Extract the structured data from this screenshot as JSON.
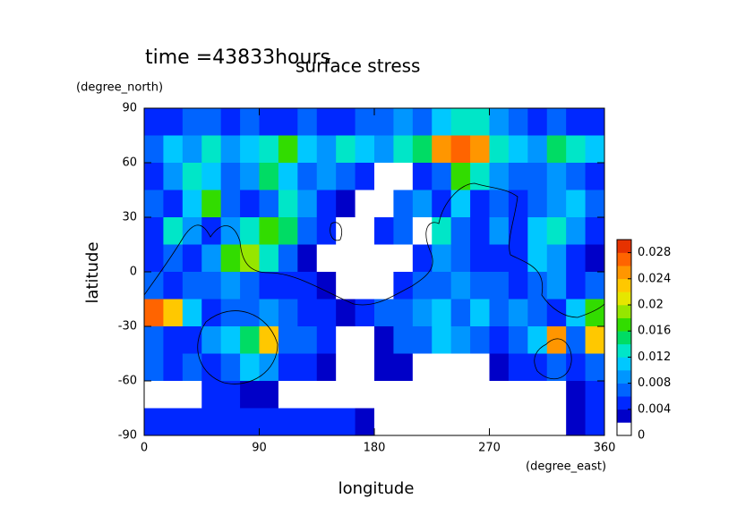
{
  "chart_data": {
    "type": "contour",
    "title": "time =43833hours",
    "subtitle": "surface stress",
    "xlabel": "longitude",
    "ylabel": "latitude",
    "xunit": "(degree_east)",
    "yunit": "(degree_north)",
    "xlim": [
      0,
      360
    ],
    "ylim": [
      -90,
      90
    ],
    "xticks": [
      0,
      90,
      180,
      270,
      360
    ],
    "yticks": [
      -90,
      -60,
      -30,
      0,
      30,
      60,
      90
    ],
    "z": [
      [
        0.004,
        0.004,
        0.006,
        0.006,
        0.004,
        0.006,
        0.004,
        0.004,
        0.006,
        0.004,
        0.004,
        0.006,
        0.006,
        0.008,
        0.006,
        0.01,
        0.012,
        0.012,
        0.008,
        0.006,
        0.004,
        0.006,
        0.004,
        0.004
      ],
      [
        0.006,
        0.01,
        0.008,
        0.012,
        0.008,
        0.01,
        0.012,
        0.016,
        0.01,
        0.008,
        0.012,
        0.01,
        0.008,
        0.012,
        0.014,
        0.024,
        0.026,
        0.024,
        0.012,
        0.01,
        0.008,
        0.014,
        0.012,
        0.01
      ],
      [
        0.004,
        0.008,
        0.012,
        0.01,
        0.006,
        0.008,
        0.014,
        0.01,
        0.006,
        0.008,
        0.006,
        0.004,
        0,
        0,
        0.004,
        0.006,
        0.016,
        0.012,
        0.008,
        0.006,
        0.006,
        0.008,
        0.006,
        0.004
      ],
      [
        0.006,
        0.004,
        0.01,
        0.016,
        0.006,
        0.004,
        0.006,
        0.012,
        0.008,
        0.004,
        0.002,
        0,
        0,
        0.006,
        0.008,
        0.004,
        0.01,
        0.004,
        0.006,
        0.004,
        0.006,
        0.008,
        0.01,
        0.006
      ],
      [
        0.004,
        0.012,
        0.008,
        0.004,
        0.008,
        0.012,
        0.016,
        0.014,
        0.006,
        0.004,
        0,
        0,
        0.004,
        0.006,
        0,
        0.012,
        0.006,
        0.004,
        0.008,
        0.004,
        0.01,
        0.012,
        0.008,
        0.004
      ],
      [
        0.004,
        0.006,
        0.004,
        0.008,
        0.016,
        0.018,
        0.012,
        0.006,
        0.002,
        0,
        0,
        0,
        0,
        0,
        0.004,
        0.008,
        0.006,
        0.004,
        0.004,
        0.004,
        0.01,
        0.008,
        0.004,
        0.002
      ],
      [
        0.006,
        0.004,
        0.006,
        0.006,
        0.008,
        0.006,
        0.004,
        0.004,
        0.004,
        0.002,
        0,
        0,
        0,
        0.004,
        0.006,
        0.006,
        0.008,
        0.006,
        0.006,
        0.004,
        0.006,
        0.008,
        0.004,
        0.006
      ],
      [
        0.026,
        0.022,
        0.01,
        0.004,
        0.006,
        0.006,
        0.008,
        0.006,
        0.004,
        0.004,
        0.002,
        0.004,
        0.006,
        0.006,
        0.008,
        0.01,
        0.006,
        0.01,
        0.006,
        0.008,
        0.006,
        0.004,
        0.01,
        0.016
      ],
      [
        0.006,
        0.004,
        0.004,
        0.008,
        0.01,
        0.014,
        0.022,
        0.006,
        0.006,
        0.004,
        0,
        0,
        0.002,
        0.006,
        0.006,
        0.01,
        0.008,
        0.006,
        0.004,
        0.006,
        0.01,
        0.024,
        0.006,
        0.022
      ],
      [
        0.006,
        0.004,
        0.006,
        0.004,
        0.006,
        0.01,
        0.008,
        0.004,
        0.004,
        0.002,
        0,
        0,
        0.002,
        0.002,
        0,
        0,
        0,
        0,
        0.002,
        0.004,
        0.004,
        0.006,
        0.004,
        0.006
      ],
      [
        0,
        0,
        0,
        0.004,
        0.004,
        0.002,
        0.002,
        0,
        0,
        0,
        0,
        0,
        0,
        0,
        0,
        0,
        0,
        0,
        0,
        0,
        0,
        0,
        0.002,
        0.004
      ],
      [
        0.004,
        0.004,
        0.004,
        0.004,
        0.004,
        0.004,
        0.004,
        0.004,
        0.004,
        0.004,
        0.004,
        0.002,
        0,
        0,
        0,
        0,
        0,
        0,
        0,
        0,
        0,
        0,
        0.002,
        0.004
      ]
    ],
    "levels": [
      0,
      0.002,
      0.004,
      0.006,
      0.008,
      0.01,
      0.012,
      0.014,
      0.016,
      0.018,
      0.02,
      0.022,
      0.024,
      0.026,
      0.028,
      0.03
    ],
    "colors": [
      "#ffffff",
      "#0000c8",
      "#0028ff",
      "#0064ff",
      "#0096ff",
      "#00c8ff",
      "#00e6c8",
      "#00dc64",
      "#32dc00",
      "#96e600",
      "#e6e600",
      "#ffc800",
      "#ff9600",
      "#ff6400",
      "#e63200"
    ],
    "cticks": [
      0,
      0.004,
      0.008,
      0.012,
      0.016,
      0.02,
      0.024,
      0.028
    ]
  }
}
